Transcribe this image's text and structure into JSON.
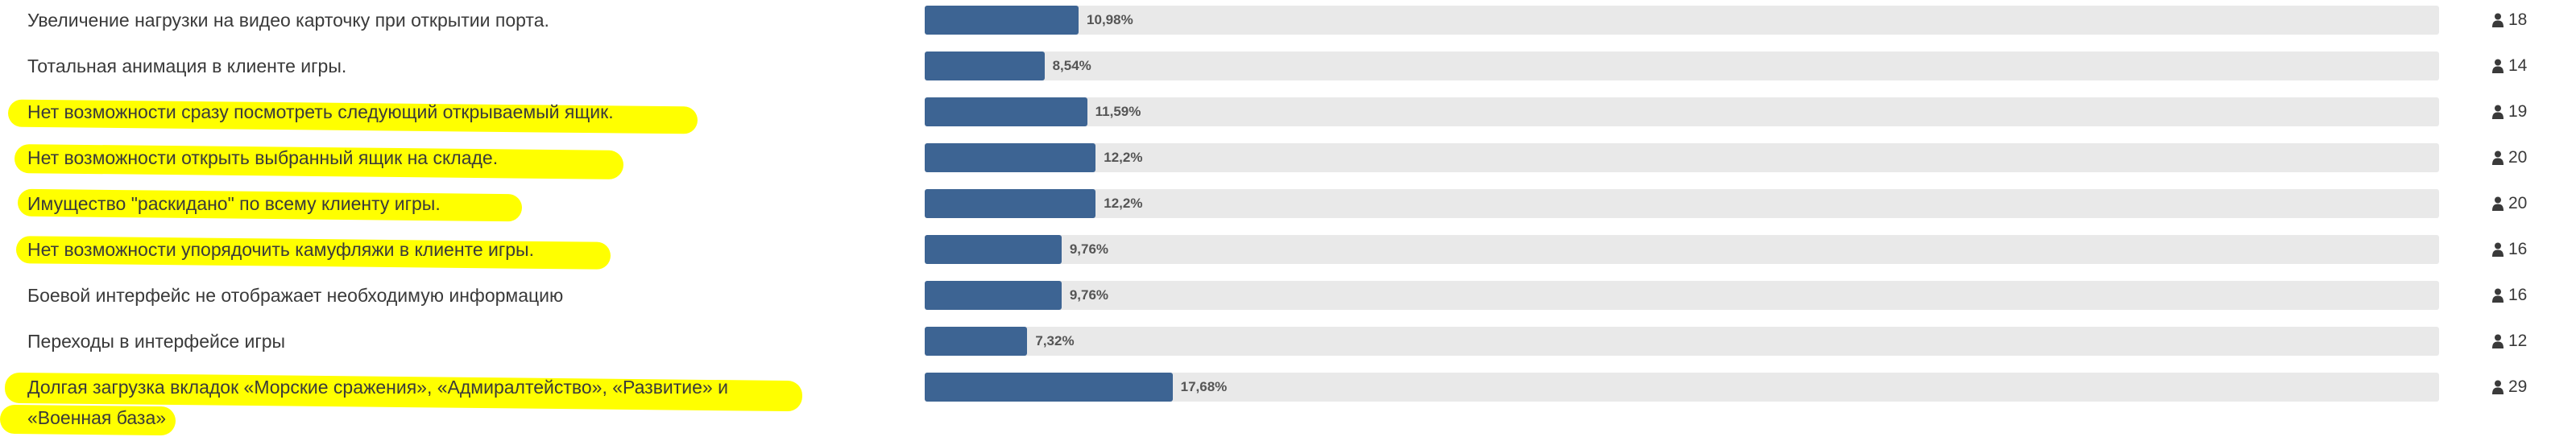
{
  "poll": {
    "colors": {
      "bar_fill": "#3d6493",
      "bar_track": "#e9e9e9",
      "highlight": "#ffff00"
    },
    "icons": {
      "voters": "user-icon"
    },
    "options": [
      {
        "label": "Увеличение нагрузки на видео карточку при открытии порта.",
        "percent_text": "10,98%",
        "percent": 10.98,
        "votes": "18",
        "highlighted": false
      },
      {
        "label": "Тотальная анимация в клиенте игры.",
        "percent_text": "8,54%",
        "percent": 8.54,
        "votes": "14",
        "highlighted": false
      },
      {
        "label": "Нет возможности сразу посмотреть следующий открываемый ящик.",
        "percent_text": "11,59%",
        "percent": 11.59,
        "votes": "19",
        "highlighted": true
      },
      {
        "label": "Нет возможности открыть выбранный ящик на складе.",
        "percent_text": "12,2%",
        "percent": 12.2,
        "votes": "20",
        "highlighted": true
      },
      {
        "label": "Имущество \"раскидано\" по всему клиенту игры.",
        "percent_text": "12,2%",
        "percent": 12.2,
        "votes": "20",
        "highlighted": true
      },
      {
        "label": "Нет возможности упорядочить камуфляжи в клиенте игры.",
        "percent_text": "9,76%",
        "percent": 9.76,
        "votes": "16",
        "highlighted": true
      },
      {
        "label": "Боевой интерфейс не отображает необходимую информацию",
        "percent_text": "9,76%",
        "percent": 9.76,
        "votes": "16",
        "highlighted": false
      },
      {
        "label": "Переходы в интерфейсе игры",
        "percent_text": "7,32%",
        "percent": 7.32,
        "votes": "12",
        "highlighted": false
      },
      {
        "label": "Долгая загрузка вкладок «Морские сражения», «Адмиралтейство», «Развитие» и «Военная база»",
        "percent_text": "17,68%",
        "percent": 17.68,
        "votes": "29",
        "highlighted": true
      }
    ]
  }
}
